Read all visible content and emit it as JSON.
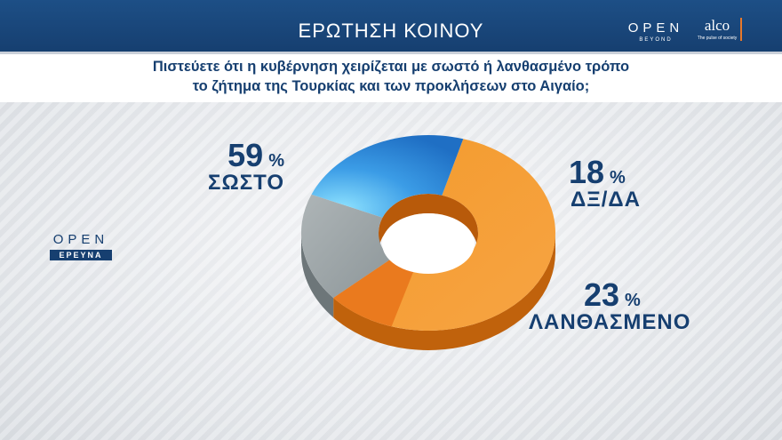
{
  "header": {
    "title": "ΕΡΩΤΗΣΗ ΚΟΙΝΟΥ",
    "brand_open": "OPEN",
    "brand_beyond": "BEYOND",
    "brand_alco": "alco",
    "brand_alco_tagline": "The pulse of society"
  },
  "question": {
    "line1": "Πιστεύετε ότι η κυβέρνηση χειρίζεται με σωστό ή λανθασμένο τρόπο",
    "line2": "το ζήτημα της Τουρκίας και των  προκλήσεων στο Αιγαίο;"
  },
  "side_logo": {
    "open": "OPEN",
    "sub": "ΕΡΕΥΝΑ"
  },
  "labels": {
    "correct_pct": "59",
    "correct_cat": "ΣΩΣΤΟ",
    "nr_pct": "18",
    "nr_cat": "ΔΞ/ΔΑ",
    "wrong_pct": "23",
    "wrong_cat": "ΛΑΝΘΑΣΜΕΝΟ",
    "pct_sign": "%"
  },
  "chart_data": {
    "type": "pie",
    "variant": "donut-3d",
    "categories": [
      "ΣΩΣΤΟ",
      "ΔΞ/ΔΑ",
      "ΛΑΝΘΑΣΜΕΝΟ"
    ],
    "values": [
      59,
      18,
      23
    ],
    "unit": "%",
    "colors": [
      "#f28a1e",
      "#9aa3a6",
      "#2a86d6"
    ],
    "side_colors": [
      "#c0620c",
      "#6d7679",
      "#174f8f"
    ]
  }
}
